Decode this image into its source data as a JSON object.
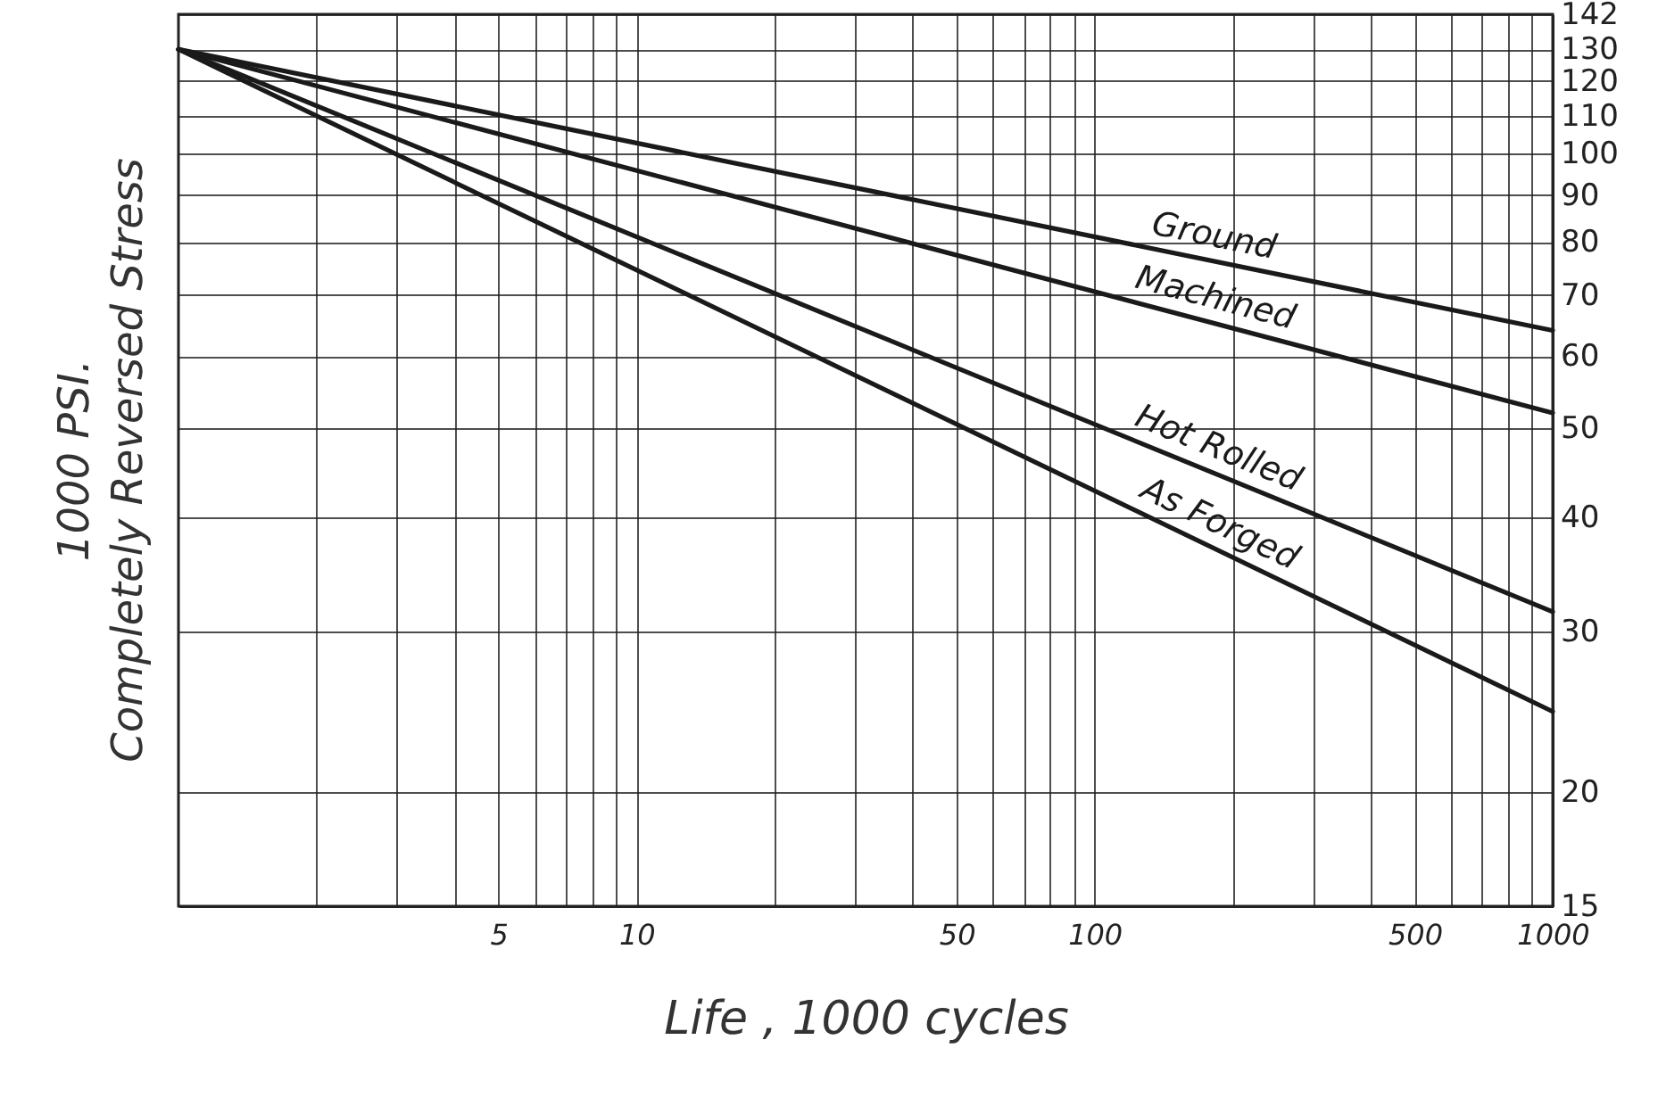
{
  "chart_data": {
    "type": "line",
    "xlabel": "Life , 1000 cycles",
    "ylabel": "1000 PSI.\nCompletely Reversed Stress",
    "log": "xy",
    "grid": true,
    "marker": "none",
    "line_style": "solid",
    "xlim": [
      1,
      1000
    ],
    "ylim": [
      15,
      142
    ],
    "xticks": [
      {
        "value": 2,
        "label": null
      },
      {
        "value": 3,
        "label": null
      },
      {
        "value": 4,
        "label": null
      },
      5,
      {
        "value": 6,
        "label": null
      },
      {
        "value": 7,
        "label": null
      },
      {
        "value": 8,
        "label": null
      },
      {
        "value": 9,
        "label": null
      },
      10,
      {
        "value": 20,
        "label": null
      },
      {
        "value": 30,
        "label": null
      },
      {
        "value": 40,
        "label": null
      },
      50,
      {
        "value": 60,
        "label": null
      },
      {
        "value": 70,
        "label": null
      },
      {
        "value": 80,
        "label": null
      },
      {
        "value": 90,
        "label": null
      },
      100,
      {
        "value": 200,
        "label": null
      },
      {
        "value": 300,
        "label": null
      },
      {
        "value": 400,
        "label": null
      },
      500,
      {
        "value": 600,
        "label": null
      },
      {
        "value": 700,
        "label": null
      },
      {
        "value": 800,
        "label": null
      },
      {
        "value": 900,
        "label": null
      },
      1000
    ],
    "yticks": [
      15,
      20,
      30,
      40,
      50,
      60,
      70,
      80,
      90,
      100,
      110,
      120,
      130,
      142
    ],
    "x": [
      1,
      1000
    ],
    "series": [
      {
        "name": "Ground",
        "color": "#1a1a1a",
        "values": [
          130,
          64
        ]
      },
      {
        "name": "Machined",
        "color": "#1a1a1a",
        "values": [
          130,
          52
        ]
      },
      {
        "name": "Hot Rolled",
        "color": "#1a1a1a",
        "values": [
          130,
          31.5
        ]
      },
      {
        "name": "As Forged",
        "color": "#1a1a1a",
        "values": [
          130,
          24.5
        ]
      }
    ]
  }
}
